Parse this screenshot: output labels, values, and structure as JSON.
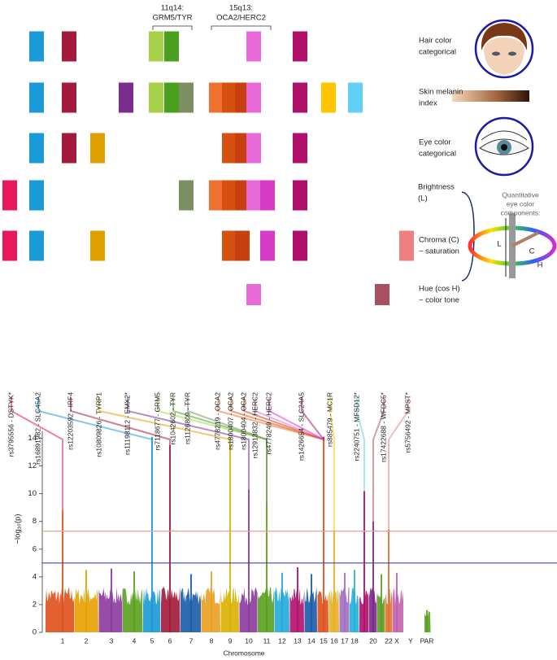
{
  "annotations": [
    {
      "lines": [
        "11q14:",
        "GRM5/TYR"
      ]
    },
    {
      "lines": [
        "15q13:",
        "OCA2/HERC2"
      ]
    }
  ],
  "loci": [
    {
      "label": "rs3795556 - DSTYK*",
      "color": "#e8185a"
    },
    {
      "label": "rs16891982 - SLC45A2",
      "color": "#1a9ad6"
    },
    {
      "label": "rs12203592 - IRF4",
      "color": "#a31a3a"
    },
    {
      "label": "rs10809826 - TYRP1",
      "color": "#e0a000"
    },
    {
      "label": "rs11198112 - EMX2*",
      "color": "#7b2d8e"
    },
    {
      "label": "rs7118677 - GRM5",
      "color": "#a6d24a"
    },
    {
      "label": "rs1042602 - TYR",
      "color": "#4aa01e"
    },
    {
      "label": "rs1126809 - TYR",
      "color": "#7a9060"
    },
    {
      "label": "rs4778219 - OCA2",
      "color": "#f07030"
    },
    {
      "label": "rs1800407 - OCA2",
      "color": "#d85010"
    },
    {
      "label": "rs1800404 - OCA2",
      "color": "#c84010"
    },
    {
      "label": "rs12913832 - HERC2",
      "color": "#e869d8"
    },
    {
      "label": "rs4778249 - HERC2",
      "color": "#d63bc8"
    },
    {
      "label": "rs1426654 - SLC24A5",
      "color": "#b0106a"
    },
    {
      "label": "rs885479 - MC1R",
      "color": "#ffc400"
    },
    {
      "label": "rs2240751 - MFSD12*",
      "color": "#60d0f8"
    },
    {
      "label": "rs17422688 - WFDC5*",
      "color": "#a85060"
    },
    {
      "label": "rs5756492 - MPST*",
      "color": "#f08080"
    }
  ],
  "traits": [
    {
      "lines": [
        "Hair color",
        "categorical"
      ],
      "loci": [
        1,
        2,
        5,
        6,
        11,
        13
      ]
    },
    {
      "lines": [
        "Skin melanin",
        "index"
      ],
      "loci": [
        1,
        2,
        4,
        5,
        6,
        7,
        8,
        9,
        10,
        11,
        13,
        14,
        15
      ]
    },
    {
      "lines": [
        "Eye color",
        "categorical"
      ],
      "loci": [
        1,
        2,
        3,
        9,
        10,
        11,
        13
      ]
    },
    {
      "lines": [
        "Brightness",
        "(L)"
      ],
      "loci": [
        0,
        1,
        7,
        8,
        9,
        10,
        11,
        12,
        13
      ]
    },
    {
      "lines": [
        "Chroma (C)",
        "~ saturation"
      ],
      "loci": [
        0,
        1,
        3,
        9,
        10,
        12,
        13,
        17
      ]
    },
    {
      "lines": [
        "Hue (cos H)",
        "~ color tone"
      ],
      "loci": [
        11,
        16
      ]
    }
  ],
  "eye_components": {
    "lines": [
      "Quantitative",
      "eye color",
      "components:"
    ],
    "axes": [
      "L",
      "C",
      "H"
    ]
  },
  "chart_data": {
    "type": "manhattan",
    "xlabel": "Chromosome",
    "ylabel": "−log₁₀(p)",
    "categories": [
      "1",
      "2",
      "3",
      "4",
      "5",
      "6",
      "7",
      "8",
      "9",
      "10",
      "11",
      "12",
      "13",
      "14",
      "15",
      "16",
      "17",
      "18",
      null,
      "20",
      null,
      "22",
      "X",
      "Y",
      "PAR"
    ],
    "values": [
      8.8,
      4.5,
      4.6,
      4.4,
      14.1,
      13.5,
      4.2,
      4.4,
      14,
      10.3,
      9.3,
      4.3,
      4.7,
      4.2,
      14.1,
      7.3,
      4.3,
      4.5,
      10.2,
      8,
      4.2,
      7.4,
      4.3,
      null,
      1.6
    ],
    "colors": [
      "#e0501a",
      "#e8a000",
      "#8a3a9e",
      "#5aa01e",
      "#1a9ad6",
      "#a01838",
      "#1a5aa8",
      "#e8a020",
      "#d8b000",
      "#8a3a9e",
      "#5aa01e",
      "#22a8d8",
      "#b0106a",
      "#1a5aa8",
      "#e0501a",
      "#e8b020",
      "#a070c0",
      "#22b0d8",
      "#b0106a",
      "#7a2a8a",
      "#5aa01e",
      "#e07030",
      "#c060b0",
      "#888888",
      "#5aa01e"
    ],
    "ylim": [
      0,
      14.5
    ],
    "yticks": [
      0,
      2,
      4,
      6,
      8,
      10,
      12,
      14
    ],
    "thresholds": [
      {
        "value": 7.3,
        "color": "#e8a098"
      },
      {
        "value": 5,
        "color": "#4040b8"
      }
    ]
  }
}
